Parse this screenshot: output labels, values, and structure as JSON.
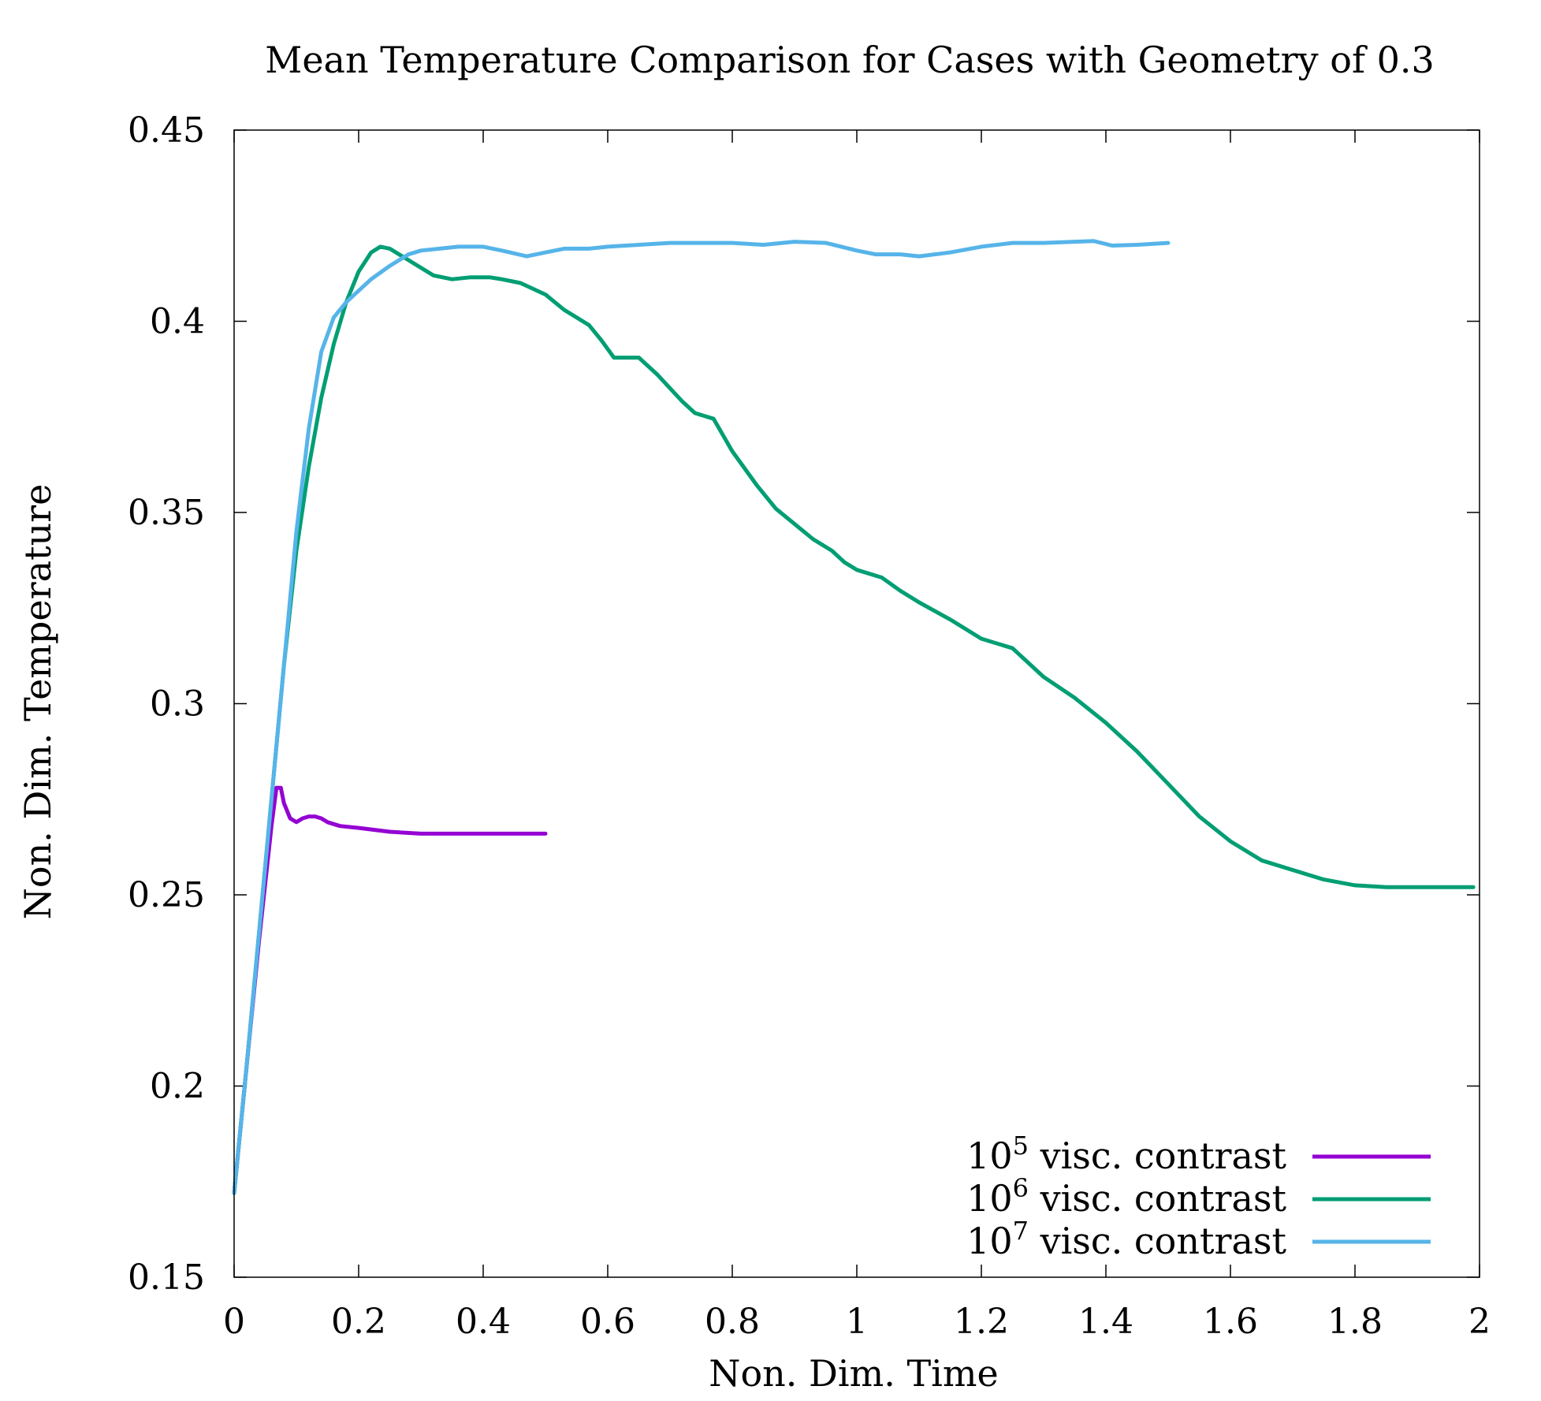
{
  "chart_data": {
    "type": "line",
    "title": "Mean Temperature Comparison for Cases with Geometry of 0.3",
    "xlabel": "Non. Dim. Time",
    "ylabel": "Non. Dim. Temperature",
    "xlim": [
      0,
      2
    ],
    "ylim": [
      0.15,
      0.45
    ],
    "xticks": [
      0,
      0.2,
      0.4,
      0.6,
      0.8,
      1,
      1.2,
      1.4,
      1.6,
      1.8,
      2
    ],
    "xtick_labels": [
      "0",
      "0.2",
      "0.4",
      "0.6",
      "0.8",
      "1",
      "1.2",
      "1.4",
      "1.6",
      "1.8",
      "2"
    ],
    "yticks": [
      0.15,
      0.2,
      0.25,
      0.3,
      0.35,
      0.4,
      0.45
    ],
    "ytick_labels": [
      "0.15",
      "0.2",
      "0.25",
      "0.3",
      "0.35",
      "0.4",
      "0.45"
    ],
    "grid": false,
    "legend_position": "bottom-right",
    "series": [
      {
        "name_base": "10",
        "name_exp": "5",
        "name_rest": " visc. contrast",
        "color": "#9400d3",
        "x": [
          0.0,
          0.02,
          0.04,
          0.06,
          0.068,
          0.075,
          0.08,
          0.09,
          0.1,
          0.11,
          0.12,
          0.13,
          0.14,
          0.15,
          0.17,
          0.2,
          0.25,
          0.3,
          0.35,
          0.4,
          0.45,
          0.5
        ],
        "y": [
          0.172,
          0.205,
          0.238,
          0.268,
          0.278,
          0.278,
          0.274,
          0.27,
          0.269,
          0.27,
          0.2705,
          0.2705,
          0.27,
          0.269,
          0.268,
          0.2675,
          0.2665,
          0.266,
          0.266,
          0.266,
          0.266,
          0.266
        ]
      },
      {
        "name_base": "10",
        "name_exp": "6",
        "name_rest": " visc. contrast",
        "color": "#009e73",
        "x": [
          0.0,
          0.02,
          0.04,
          0.06,
          0.08,
          0.1,
          0.12,
          0.14,
          0.16,
          0.18,
          0.2,
          0.22,
          0.235,
          0.25,
          0.28,
          0.3,
          0.32,
          0.35,
          0.38,
          0.41,
          0.43,
          0.46,
          0.5,
          0.53,
          0.57,
          0.59,
          0.61,
          0.65,
          0.68,
          0.72,
          0.74,
          0.77,
          0.8,
          0.84,
          0.87,
          0.9,
          0.93,
          0.96,
          0.98,
          1.0,
          1.04,
          1.07,
          1.1,
          1.15,
          1.2,
          1.25,
          1.3,
          1.35,
          1.4,
          1.45,
          1.5,
          1.55,
          1.6,
          1.65,
          1.7,
          1.75,
          1.8,
          1.85,
          1.9,
          1.95,
          1.99
        ],
        "y": [
          0.172,
          0.205,
          0.24,
          0.275,
          0.31,
          0.34,
          0.362,
          0.38,
          0.394,
          0.405,
          0.413,
          0.418,
          0.4195,
          0.419,
          0.416,
          0.414,
          0.412,
          0.411,
          0.4115,
          0.4115,
          0.411,
          0.41,
          0.407,
          0.403,
          0.399,
          0.395,
          0.3905,
          0.3905,
          0.386,
          0.379,
          0.376,
          0.3745,
          0.366,
          0.357,
          0.351,
          0.347,
          0.343,
          0.34,
          0.337,
          0.335,
          0.333,
          0.3295,
          0.3265,
          0.322,
          0.317,
          0.3145,
          0.307,
          0.3015,
          0.295,
          0.2875,
          0.279,
          0.2705,
          0.264,
          0.259,
          0.2565,
          0.254,
          0.2525,
          0.252,
          0.252,
          0.252,
          0.252
        ]
      },
      {
        "name_base": "10",
        "name_exp": "7",
        "name_rest": " visc. contrast",
        "color": "#56b4e9",
        "x": [
          0.0,
          0.02,
          0.04,
          0.06,
          0.08,
          0.1,
          0.12,
          0.14,
          0.16,
          0.18,
          0.2,
          0.22,
          0.25,
          0.28,
          0.3,
          0.33,
          0.36,
          0.4,
          0.43,
          0.47,
          0.5,
          0.53,
          0.57,
          0.6,
          0.65,
          0.7,
          0.75,
          0.8,
          0.85,
          0.9,
          0.95,
          1.0,
          1.03,
          1.07,
          1.1,
          1.15,
          1.2,
          1.25,
          1.3,
          1.35,
          1.38,
          1.41,
          1.45,
          1.5
        ],
        "y": [
          0.172,
          0.205,
          0.24,
          0.275,
          0.31,
          0.345,
          0.372,
          0.392,
          0.401,
          0.405,
          0.408,
          0.411,
          0.4145,
          0.4175,
          0.4185,
          0.419,
          0.4195,
          0.4195,
          0.4185,
          0.417,
          0.418,
          0.419,
          0.419,
          0.4195,
          0.42,
          0.4205,
          0.4205,
          0.4205,
          0.42,
          0.4208,
          0.4205,
          0.4185,
          0.4175,
          0.4175,
          0.417,
          0.418,
          0.4195,
          0.4205,
          0.4205,
          0.4208,
          0.421,
          0.4198,
          0.42,
          0.4205
        ]
      }
    ]
  }
}
